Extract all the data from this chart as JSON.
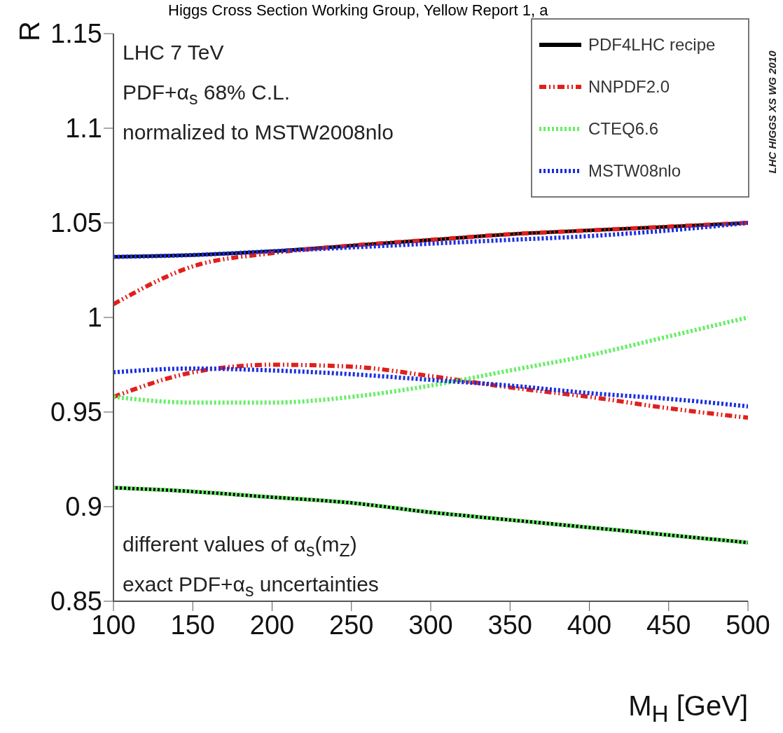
{
  "chart_data": {
    "type": "line",
    "title": "Higgs Cross Section Working Group, Yellow Report 1, a",
    "xlabel": "M$_{H}$ [GeV]",
    "ylabel": "R",
    "x": [
      100,
      150,
      200,
      250,
      300,
      350,
      400,
      450,
      500
    ],
    "series": [
      {
        "name": "PDF4LHC recipe",
        "color": "#000000",
        "line_style": "solid",
        "values": [
          1.032,
          1.033,
          1.035,
          1.038,
          1.041,
          1.044,
          1.046,
          1.048,
          1.05
        ]
      },
      {
        "color": "#000000",
        "line_style": "solid",
        "values": [
          0.91,
          0.908,
          0.905,
          0.902,
          0.897,
          0.893,
          0.889,
          0.885,
          0.881
        ]
      },
      {
        "name": "NNPDF2.0",
        "color": "#e0201b",
        "line_style": "dashed",
        "values": [
          1.007,
          1.027,
          1.034,
          1.038,
          1.041,
          1.044,
          1.046,
          1.048,
          1.05
        ]
      },
      {
        "color": "#e0201b",
        "line_style": "dashed",
        "values": [
          0.958,
          0.971,
          0.975,
          0.974,
          0.969,
          0.963,
          0.958,
          0.952,
          0.947
        ]
      },
      {
        "name": "CTEQ6.6",
        "color": "#66ee66",
        "line_style": "dotted",
        "values": [
          0.958,
          0.955,
          0.955,
          0.958,
          0.964,
          0.972,
          0.98,
          0.99,
          1.0
        ]
      },
      {
        "color": "#66ee66",
        "line_style": "dotted",
        "values": [
          0.91,
          0.908,
          0.905,
          0.902,
          0.897,
          0.893,
          0.889,
          0.885,
          0.881
        ]
      },
      {
        "name": "MSTW08nlo",
        "color": "#1a2ee0",
        "line_style": "dotted",
        "values": [
          1.032,
          1.033,
          1.035,
          1.037,
          1.039,
          1.041,
          1.043,
          1.046,
          1.05
        ]
      },
      {
        "color": "#1a2ee0",
        "line_style": "dotted",
        "values": [
          0.971,
          0.973,
          0.972,
          0.97,
          0.967,
          0.964,
          0.96,
          0.957,
          0.953
        ]
      }
    ],
    "xlim": [
      100,
      500
    ],
    "xticks": [
      100,
      150,
      200,
      250,
      300,
      350,
      400,
      450,
      500
    ],
    "ylim": [
      0.85,
      1.15
    ],
    "yticks": [
      0.85,
      0.9,
      0.95,
      1,
      1.05,
      1.1,
      1.15
    ],
    "grid": false,
    "legend": "top right",
    "annotations": [
      "LHC 7 TeV",
      "PDF+α$_{s}$ 68% C.L.",
      "normalized to MSTW2008nlo",
      "different values of α$_{s}$(m$_{Z}$)",
      "exact PDF+α$_{s}$ uncertainties",
      "LHC HIGGS XS WG 2010"
    ]
  }
}
